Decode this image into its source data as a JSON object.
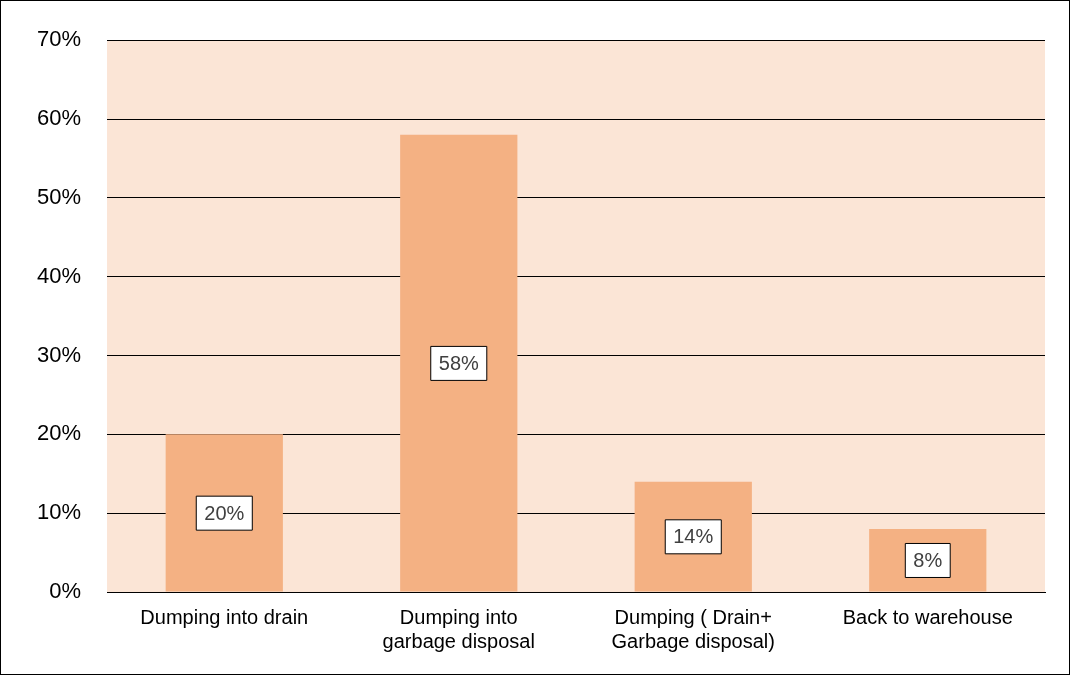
{
  "chart_data": {
    "type": "bar",
    "categories": [
      "Dumping into drain",
      "Dumping into garbage disposal",
      "Dumping ( Drain+ Garbage disposal)",
      "Back to warehouse"
    ],
    "values": [
      20,
      58,
      14,
      8
    ],
    "value_labels": [
      "20%",
      "58%",
      "14%",
      "8%"
    ],
    "color": "#f4b183",
    "ylim": [
      0,
      70
    ],
    "yticks": [
      {
        "value": 0,
        "label": "0%"
      },
      {
        "value": 10,
        "label": "10%"
      },
      {
        "value": 20,
        "label": "20%"
      },
      {
        "value": 30,
        "label": "30%"
      },
      {
        "value": 40,
        "label": "40%"
      },
      {
        "value": 50,
        "label": "50%"
      },
      {
        "value": 60,
        "label": "60%"
      },
      {
        "value": 70,
        "label": "70%"
      }
    ],
    "grid": "y",
    "legend": false
  }
}
